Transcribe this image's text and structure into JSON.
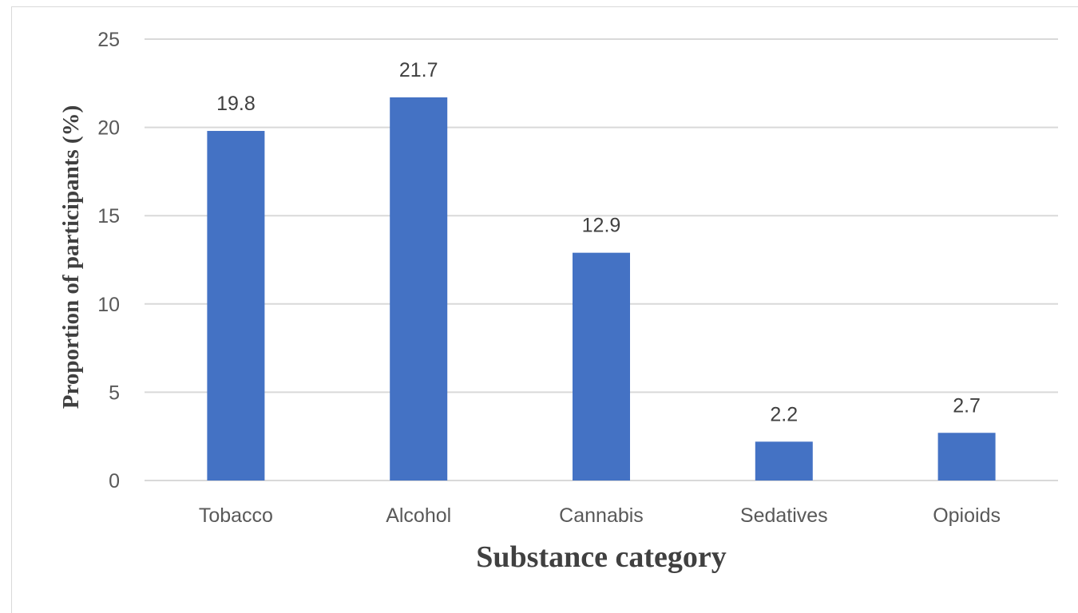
{
  "chart_data": {
    "type": "bar",
    "title": "",
    "xlabel": "Substance category",
    "ylabel": "Proportion of participants (%)",
    "categories": [
      "Tobacco",
      "Alcohol",
      "Cannabis",
      "Sedatives",
      "Opioids"
    ],
    "values": [
      19.8,
      21.7,
      12.9,
      2.2,
      2.7
    ],
    "data_labels": [
      "19.8",
      "21.7",
      "12.9",
      "2.2",
      "2.7"
    ],
    "ylim": [
      0,
      25
    ],
    "yticks": [
      "0",
      "5",
      "10",
      "15",
      "20",
      "25"
    ],
    "grid": true,
    "legend": "none",
    "colors": {
      "bar": "#4472c4",
      "grid": "#d9d9d9",
      "text": "#595959"
    }
  }
}
